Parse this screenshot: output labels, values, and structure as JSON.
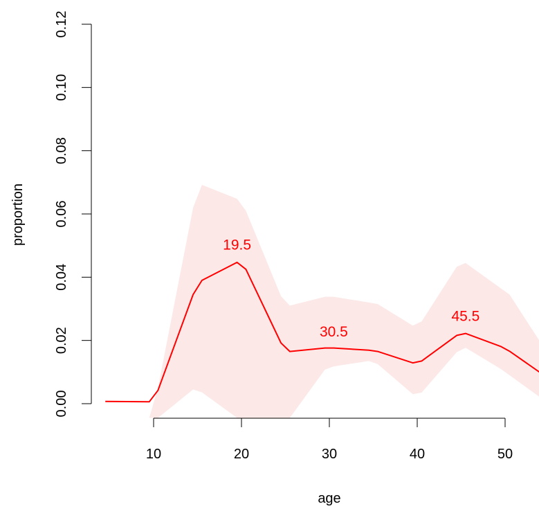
{
  "chart_data": {
    "type": "line",
    "title": "",
    "xlabel": "age",
    "ylabel": "proportion",
    "xlim": [
      4.5,
      54
    ],
    "ylim": [
      -0.0045,
      0.12
    ],
    "x_ticks": [
      10,
      20,
      30,
      40,
      50
    ],
    "x_tick_labels": [
      "10",
      "20",
      "30",
      "40",
      "50"
    ],
    "y_ticks": [
      0.0,
      0.02,
      0.04,
      0.06,
      0.08,
      0.1,
      0.12
    ],
    "y_tick_labels": [
      "0.00",
      "0.02",
      "0.04",
      "0.06",
      "0.08",
      "0.10",
      "0.12"
    ],
    "grid": false,
    "line_color": "#ff0000",
    "band_color": "#fde8e8",
    "series": [
      {
        "x": [
          4.5,
          9.5,
          10.5,
          14.5,
          15.5,
          19.5,
          20.5,
          24.5,
          25.5,
          29.5,
          30.5,
          34.5,
          35.5,
          39.5,
          40.5,
          44.5,
          45.5,
          49.5,
          50.5,
          54.0
        ],
        "y": [
          0.0007,
          0.0006,
          0.0042,
          0.0345,
          0.039,
          0.0447,
          0.0425,
          0.0192,
          0.0165,
          0.0176,
          0.0176,
          0.0169,
          0.0165,
          0.0129,
          0.0135,
          0.0216,
          0.0222,
          0.0181,
          0.0166,
          0.0098
        ],
        "lower": [
          -0.0045,
          -0.0045,
          -0.0045,
          0.0045,
          0.0036,
          -0.0045,
          -0.0045,
          -0.0045,
          -0.0045,
          0.0108,
          0.0118,
          0.0135,
          0.0125,
          0.003,
          0.0035,
          0.0163,
          0.0177,
          0.011,
          0.009,
          0.002
        ],
        "upper": [
          -0.0045,
          -0.0045,
          0.005,
          0.062,
          0.0692,
          0.0648,
          0.061,
          0.034,
          0.031,
          0.0338,
          0.0338,
          0.032,
          0.0315,
          0.0247,
          0.026,
          0.0433,
          0.0445,
          0.0365,
          0.0345,
          0.0195
        ]
      }
    ],
    "annotations": [
      {
        "text": "19.5",
        "x": 19.5,
        "y": 0.0487
      },
      {
        "text": "30.5",
        "x": 30.5,
        "y": 0.0212
      },
      {
        "text": "45.5",
        "x": 45.5,
        "y": 0.0262
      }
    ]
  }
}
